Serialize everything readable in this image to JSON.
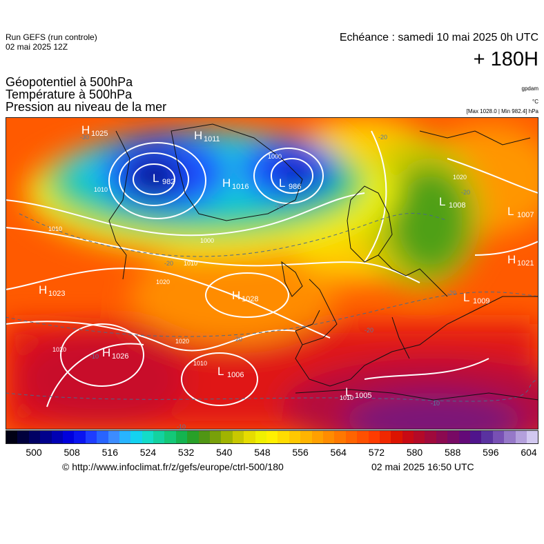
{
  "header": {
    "run_line1": "Run GEFS (run controle)",
    "run_line2": "02 mai 2025 12Z",
    "echeance": "Echéance : samedi 10 mai 2025 0h UTC",
    "lead_time": "+ 180H"
  },
  "titles": {
    "line1": "Géopotentiel à 500hPa",
    "line2": "Température à 500hPa",
    "line3": "Pression au niveau de la mer"
  },
  "units": {
    "gpdam": "gpdam",
    "celsius": "°C",
    "pressure_range": "[Max 1028.0 | Min 982.4] hPa"
  },
  "pressure_centers": [
    {
      "type": "H",
      "value": "1025"
    },
    {
      "type": "H",
      "value": "1011"
    },
    {
      "type": "L",
      "value": "982"
    },
    {
      "type": "H",
      "value": "1016"
    },
    {
      "type": "L",
      "value": "986"
    },
    {
      "type": "L",
      "value": "1008"
    },
    {
      "type": "L",
      "value": "1007"
    },
    {
      "type": "H",
      "value": "1021"
    },
    {
      "type": "H",
      "value": "1023"
    },
    {
      "type": "H",
      "value": "1028"
    },
    {
      "type": "L",
      "value": "1009"
    },
    {
      "type": "H",
      "value": "1026"
    },
    {
      "type": "L",
      "value": "1006"
    },
    {
      "type": "L",
      "value": "1005"
    }
  ],
  "isobar_labels": [
    "1010",
    "1000",
    "1020",
    "1010",
    "1010",
    "1000",
    "1020",
    "1020",
    "1010",
    "1020",
    "1010"
  ],
  "temp_labels": [
    "-30",
    "-20",
    "-20",
    "-20",
    "-20",
    "-30",
    "-20",
    "-10",
    "-10",
    "-20",
    "-10"
  ],
  "colorbar": {
    "tick_labels": [
      "500",
      "508",
      "516",
      "524",
      "532",
      "540",
      "548",
      "556",
      "564",
      "572",
      "580",
      "588",
      "596",
      "604"
    ],
    "colors": [
      "#000014",
      "#00003c",
      "#000064",
      "#00008c",
      "#0000b4",
      "#0000dc",
      "#0a14f0",
      "#1e3cff",
      "#2864ff",
      "#3c8cff",
      "#28b4ff",
      "#14d2f0",
      "#14dcc8",
      "#14d2a0",
      "#14c878",
      "#14b450",
      "#28a028",
      "#509614",
      "#78a00a",
      "#a0b400",
      "#c8c800",
      "#e6dc00",
      "#f0f000",
      "#fff000",
      "#ffdc00",
      "#ffc800",
      "#ffb400",
      "#ffa000",
      "#ff8c00",
      "#ff7800",
      "#ff6400",
      "#ff5000",
      "#ff3c00",
      "#f02800",
      "#dc1400",
      "#c80a14",
      "#b40a28",
      "#a00a3c",
      "#8c0a50",
      "#780a64",
      "#640a78",
      "#50148c",
      "#5a32a0",
      "#7850b4",
      "#9678c8",
      "#b4a0dc",
      "#d2c8f0"
    ]
  },
  "footer": {
    "copyright": "© http://www.infoclimat.fr/z/gefs/europe/ctrl-500/180",
    "generated": "02 mai 2025 16:50 UTC"
  }
}
